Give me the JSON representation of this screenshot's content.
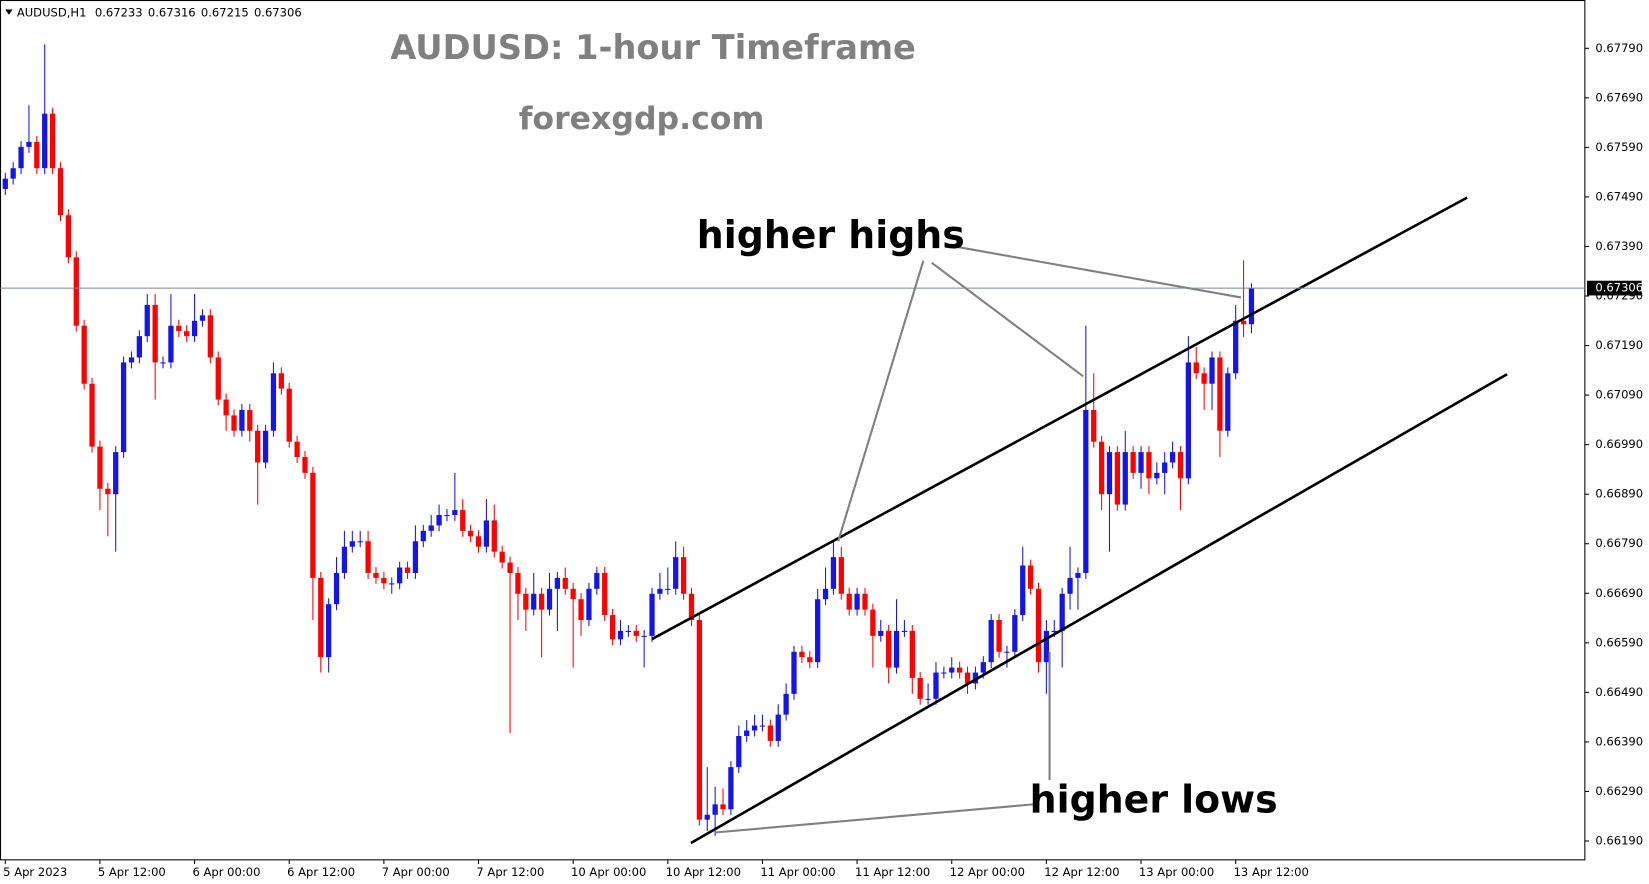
{
  "chart_data": {
    "type": "candlestick",
    "header": "AUDUSD,H1",
    "title": "AUDUSD: 1-hour Timeframe",
    "subtitle": "forexgdp.com",
    "annotations": [
      "higher highs",
      "higher lows"
    ],
    "up_color": "#1515e6",
    "down_color": "#ff0000",
    "price_line_color": "#778899",
    "grid": false,
    "xlim": [
      -0.67,
      200.27
    ],
    "ylim": [
      0.66152,
      0.67879
    ],
    "xticks": [
      {
        "value": 0,
        "label": "5 Apr 2023"
      },
      {
        "value": 12,
        "label": "5 Apr 12:00"
      },
      {
        "value": 24,
        "label": "6 Apr 00:00"
      },
      {
        "value": 36,
        "label": "6 Apr 12:00"
      },
      {
        "value": 48,
        "label": "7 Apr 00:00"
      },
      {
        "value": 60,
        "label": "7 Apr 12:00"
      },
      {
        "value": 72,
        "label": "10 Apr 00:00"
      },
      {
        "value": 84,
        "label": "10 Apr 12:00"
      },
      {
        "value": 96,
        "label": "11 Apr 00:00"
      },
      {
        "value": 108,
        "label": "11 Apr 12:00"
      },
      {
        "value": 120,
        "label": "12 Apr 00:00"
      },
      {
        "value": 132,
        "label": "12 Apr 12:00"
      },
      {
        "value": 144,
        "label": "13 Apr 00:00"
      },
      {
        "value": 156,
        "label": "13 Apr 12:00"
      }
    ],
    "yticks": [
      {
        "value": 0.6779,
        "label": "0.67790"
      },
      {
        "value": 0.6769,
        "label": "0.67690"
      },
      {
        "value": 0.6759,
        "label": "0.67590"
      },
      {
        "value": 0.6749,
        "label": "0.67490"
      },
      {
        "value": 0.6739,
        "label": "0.67390"
      },
      {
        "value": 0.6729,
        "label": "0.67290"
      },
      {
        "value": 0.6719,
        "label": "0.67190"
      },
      {
        "value": 0.6709,
        "label": "0.67090"
      },
      {
        "value": 0.6699,
        "label": "0.66990"
      },
      {
        "value": 0.6689,
        "label": "0.66890"
      },
      {
        "value": 0.6679,
        "label": "0.66790"
      },
      {
        "value": 0.6669,
        "label": "0.66690"
      },
      {
        "value": 0.6659,
        "label": "0.66590"
      },
      {
        "value": 0.6649,
        "label": "0.66490"
      },
      {
        "value": 0.6639,
        "label": "0.66390"
      },
      {
        "value": 0.6629,
        "label": "0.66290"
      },
      {
        "value": 0.6619,
        "label": "0.66190"
      }
    ],
    "open": [
      0.67506,
      0.67527,
      0.67548,
      0.67591,
      0.67601,
      0.67548,
      0.67658,
      0.67548,
      0.67453,
      0.67368,
      0.6723,
      0.67113,
      0.66986,
      0.66901,
      0.6689,
      0.66975,
      0.67156,
      0.67166,
      0.67209,
      0.67272,
      0.67156,
      0.67156,
      0.6723,
      0.67219,
      0.67209,
      0.6724,
      0.67251,
      0.67166,
      0.67081,
      0.67049,
      0.67018,
      0.6706,
      0.67018,
      0.66954,
      0.67018,
      0.67134,
      0.67103,
      0.66996,
      0.66965,
      0.66933,
      0.66721,
      0.66561,
      0.66668,
      0.66731,
      0.66784,
      0.66795,
      0.66795,
      0.66731,
      0.66721,
      0.6671,
      0.6671,
      0.66742,
      0.66731,
      0.66795,
      0.66816,
      0.66827,
      0.66848,
      0.66848,
      0.66858,
      0.66816,
      0.66805,
      0.66784,
      0.66837,
      0.66774,
      0.66752,
      0.66731,
      0.66689,
      0.66657,
      0.66689,
      0.66657,
      0.66699,
      0.66721,
      0.66699,
      0.66678,
      0.66636,
      0.66699,
      0.66731,
      0.66646,
      0.66597,
      0.66614,
      0.66614,
      0.66604,
      0.66604,
      0.66689,
      0.66699,
      0.66699,
      0.66763,
      0.66689,
      0.66636,
      0.66233,
      0.66243,
      0.66264,
      0.66254,
      0.66339,
      0.66402,
      0.66413,
      0.66423,
      0.66423,
      0.66392,
      0.66445,
      0.66487,
      0.66572,
      0.66561,
      0.66551,
      0.66678,
      0.66699,
      0.66763,
      0.66689,
      0.66657,
      0.66689,
      0.66657,
      0.66604,
      0.66614,
      0.6654,
      0.66614,
      0.66614,
      0.66519,
      0.66477,
      0.66477,
      0.6653,
      0.6653,
      0.6654,
      0.6653,
      0.66508,
      0.6653,
      0.66551,
      0.66636,
      0.66572,
      0.66572,
      0.66646,
      0.66746,
      0.66699,
      0.66551,
      0.66614,
      0.66614,
      0.66689,
      0.66721,
      0.66731,
      0.6706,
      0.66996,
      0.6689,
      0.66975,
      0.66869,
      0.66975,
      0.66933,
      0.66975,
      0.66922,
      0.66933,
      0.66954,
      0.66975,
      0.66922,
      0.67156,
      0.67134,
      0.67113,
      0.67166,
      0.67018,
      0.67134,
      0.6724,
      0.67233
    ],
    "high": [
      0.67539,
      0.6756,
      0.67603,
      0.67675,
      0.67613,
      0.67798,
      0.6767,
      0.6756,
      0.67465,
      0.6738,
      0.67242,
      0.67125,
      0.66998,
      0.66913,
      0.66987,
      0.67168,
      0.67178,
      0.67221,
      0.67294,
      0.67294,
      0.67168,
      0.67294,
      0.67242,
      0.67231,
      0.67294,
      0.67263,
      0.67263,
      0.67178,
      0.67093,
      0.67061,
      0.67072,
      0.67072,
      0.6703,
      0.6703,
      0.67156,
      0.67146,
      0.67115,
      0.67008,
      0.66977,
      0.66945,
      0.66733,
      0.6668,
      0.66763,
      0.66816,
      0.66816,
      0.66816,
      0.66816,
      0.66743,
      0.66733,
      0.66722,
      0.66754,
      0.66754,
      0.66827,
      0.66828,
      0.66848,
      0.66869,
      0.6686,
      0.66933,
      0.6688,
      0.66828,
      0.66817,
      0.6688,
      0.66869,
      0.66786,
      0.66764,
      0.66743,
      0.66701,
      0.66731,
      0.66701,
      0.66731,
      0.66733,
      0.66742,
      0.66711,
      0.6669,
      0.66711,
      0.66743,
      0.66743,
      0.66658,
      0.66636,
      0.66626,
      0.66626,
      0.66616,
      0.66701,
      0.66731,
      0.66742,
      0.66795,
      0.66784,
      0.66701,
      0.66648,
      0.66339,
      0.663,
      0.66296,
      0.66351,
      0.66423,
      0.66434,
      0.66445,
      0.66445,
      0.66435,
      0.66466,
      0.66508,
      0.66584,
      0.66584,
      0.66573,
      0.66699,
      0.66742,
      0.66795,
      0.66784,
      0.66701,
      0.66701,
      0.66701,
      0.66669,
      0.66636,
      0.66626,
      0.66678,
      0.66636,
      0.66626,
      0.66531,
      0.66508,
      0.66551,
      0.66542,
      0.66561,
      0.66552,
      0.66542,
      0.66542,
      0.66563,
      0.66648,
      0.66648,
      0.66584,
      0.66658,
      0.66784,
      0.66758,
      0.66711,
      0.66636,
      0.66636,
      0.66701,
      0.66784,
      0.66742,
      0.6723,
      0.67134,
      0.67008,
      0.66987,
      0.66987,
      0.67018,
      0.66987,
      0.66987,
      0.66987,
      0.66954,
      0.66975,
      0.66996,
      0.66987,
      0.67209,
      0.67187,
      0.67146,
      0.67178,
      0.67178,
      0.67146,
      0.67272,
      0.67362,
      0.67316
    ],
    "low": [
      0.67494,
      0.67515,
      0.67536,
      0.67579,
      0.67536,
      0.67536,
      0.67536,
      0.67441,
      0.67356,
      0.67218,
      0.67101,
      0.66974,
      0.66858,
      0.66805,
      0.66774,
      0.66963,
      0.67144,
      0.67154,
      0.67197,
      0.67081,
      0.67144,
      0.67144,
      0.67207,
      0.67197,
      0.67197,
      0.67228,
      0.67154,
      0.67069,
      0.67018,
      0.67006,
      0.67006,
      0.66996,
      0.66869,
      0.66942,
      0.67006,
      0.67091,
      0.66984,
      0.66953,
      0.66921,
      0.66636,
      0.6653,
      0.6653,
      0.66656,
      0.66719,
      0.66772,
      0.66783,
      0.66719,
      0.66709,
      0.66698,
      0.66689,
      0.66698,
      0.66719,
      0.66719,
      0.66783,
      0.66804,
      0.66815,
      0.66836,
      0.66836,
      0.66804,
      0.66793,
      0.66772,
      0.66772,
      0.66762,
      0.6674,
      0.66408,
      0.66636,
      0.66614,
      0.66645,
      0.66561,
      0.66645,
      0.66614,
      0.66687,
      0.6654,
      0.66604,
      0.66624,
      0.66687,
      0.66634,
      0.66585,
      0.66585,
      0.66602,
      0.66592,
      0.6654,
      0.66592,
      0.66677,
      0.66687,
      0.66687,
      0.66677,
      0.66624,
      0.66221,
      0.6621,
      0.662,
      0.66242,
      0.66242,
      0.66327,
      0.6639,
      0.66401,
      0.66411,
      0.6638,
      0.6638,
      0.66433,
      0.66475,
      0.66549,
      0.66539,
      0.66539,
      0.66666,
      0.66687,
      0.66677,
      0.66645,
      0.66645,
      0.66645,
      0.6654,
      0.66592,
      0.66508,
      0.66528,
      0.66602,
      0.66487,
      0.66465,
      0.66465,
      0.66465,
      0.66518,
      0.66518,
      0.66518,
      0.66487,
      0.66496,
      0.66518,
      0.66539,
      0.6656,
      0.6654,
      0.6656,
      0.66634,
      0.66687,
      0.6653,
      0.66487,
      0.66602,
      0.6654,
      0.66657,
      0.66657,
      0.66719,
      0.66984,
      0.66858,
      0.66774,
      0.66857,
      0.66857,
      0.66921,
      0.66901,
      0.6689,
      0.6691,
      0.6689,
      0.66942,
      0.66858,
      0.6691,
      0.67122,
      0.6706,
      0.6706,
      0.66965,
      0.67006,
      0.67122,
      0.67207,
      0.67215
    ],
    "close": [
      0.67527,
      0.67548,
      0.67591,
      0.67601,
      0.67548,
      0.67658,
      0.67548,
      0.67453,
      0.67368,
      0.6723,
      0.67113,
      0.66986,
      0.66901,
      0.6689,
      0.66975,
      0.67156,
      0.67166,
      0.67209,
      0.67272,
      0.67156,
      0.67156,
      0.6723,
      0.67219,
      0.67209,
      0.6724,
      0.67251,
      0.67166,
      0.67081,
      0.67049,
      0.67018,
      0.6706,
      0.67018,
      0.66954,
      0.67018,
      0.67134,
      0.67103,
      0.66996,
      0.66965,
      0.66933,
      0.66721,
      0.66561,
      0.66668,
      0.66731,
      0.66784,
      0.66795,
      0.66795,
      0.66731,
      0.66721,
      0.6671,
      0.6671,
      0.66742,
      0.66731,
      0.66795,
      0.66816,
      0.66827,
      0.66848,
      0.66848,
      0.66858,
      0.66816,
      0.66805,
      0.66784,
      0.66837,
      0.66774,
      0.66752,
      0.66731,
      0.66689,
      0.66657,
      0.66689,
      0.66657,
      0.66699,
      0.66721,
      0.66699,
      0.66678,
      0.66636,
      0.66699,
      0.66731,
      0.66646,
      0.66597,
      0.66614,
      0.66614,
      0.66604,
      0.66604,
      0.66689,
      0.66699,
      0.66699,
      0.66763,
      0.66689,
      0.66636,
      0.66233,
      0.66243,
      0.66264,
      0.66254,
      0.66339,
      0.66402,
      0.66413,
      0.66423,
      0.66423,
      0.66392,
      0.66445,
      0.66487,
      0.66572,
      0.66561,
      0.66551,
      0.66678,
      0.66699,
      0.66763,
      0.66689,
      0.66657,
      0.66689,
      0.66657,
      0.66604,
      0.66614,
      0.6654,
      0.66614,
      0.66614,
      0.66519,
      0.66477,
      0.66477,
      0.6653,
      0.6653,
      0.6654,
      0.6653,
      0.66508,
      0.6653,
      0.66551,
      0.66636,
      0.66572,
      0.66572,
      0.66646,
      0.66746,
      0.66699,
      0.66551,
      0.66614,
      0.66614,
      0.66689,
      0.66721,
      0.66731,
      0.6706,
      0.66996,
      0.6689,
      0.66975,
      0.66869,
      0.66975,
      0.66933,
      0.66975,
      0.66922,
      0.66933,
      0.66954,
      0.66975,
      0.66922,
      0.67156,
      0.67134,
      0.67113,
      0.67166,
      0.67018,
      0.67134,
      0.6724,
      0.67233,
      0.67306
    ]
  }
}
